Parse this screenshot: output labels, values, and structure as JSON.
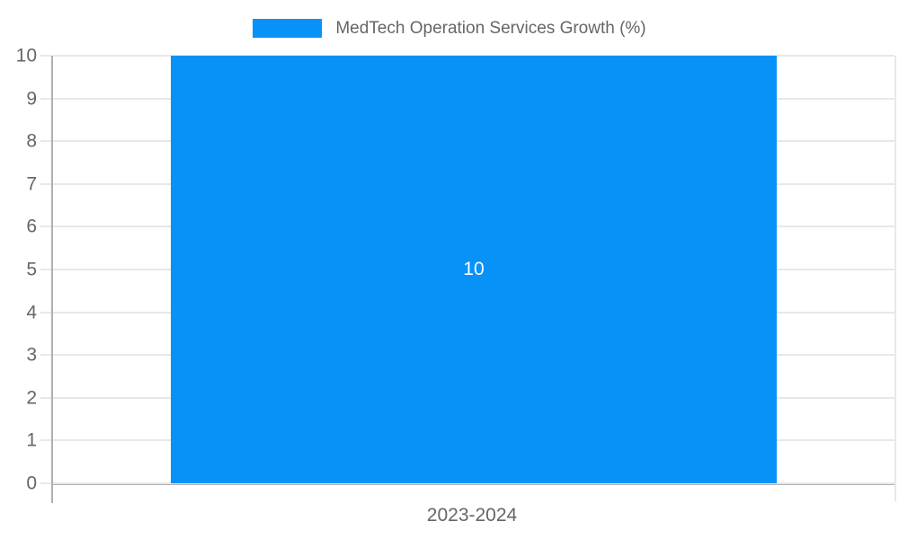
{
  "chart_data": {
    "type": "bar",
    "title": "MedTech Operation Services Growth (%)",
    "legend": {
      "position": "top-center",
      "entries": [
        {
          "label": "MedTech Operation Services Growth (%)",
          "color": "#0892f8"
        }
      ]
    },
    "categories": [
      "2023-2024"
    ],
    "series": [
      {
        "name": "MedTech Operation Services Growth (%)",
        "values": [
          10
        ]
      }
    ],
    "value_labels": [
      "10"
    ],
    "xlabel": "",
    "ylabel": "",
    "ylim": [
      0,
      10
    ],
    "yticks": [
      0,
      1,
      2,
      3,
      4,
      5,
      6,
      7,
      8,
      9,
      10
    ],
    "grid": true,
    "colors": {
      "bar": "#0892f8",
      "grid": "#e8e8e8",
      "axis": "#b0b0b0",
      "tick_text": "#666666",
      "value_label": "#ffffff"
    }
  }
}
